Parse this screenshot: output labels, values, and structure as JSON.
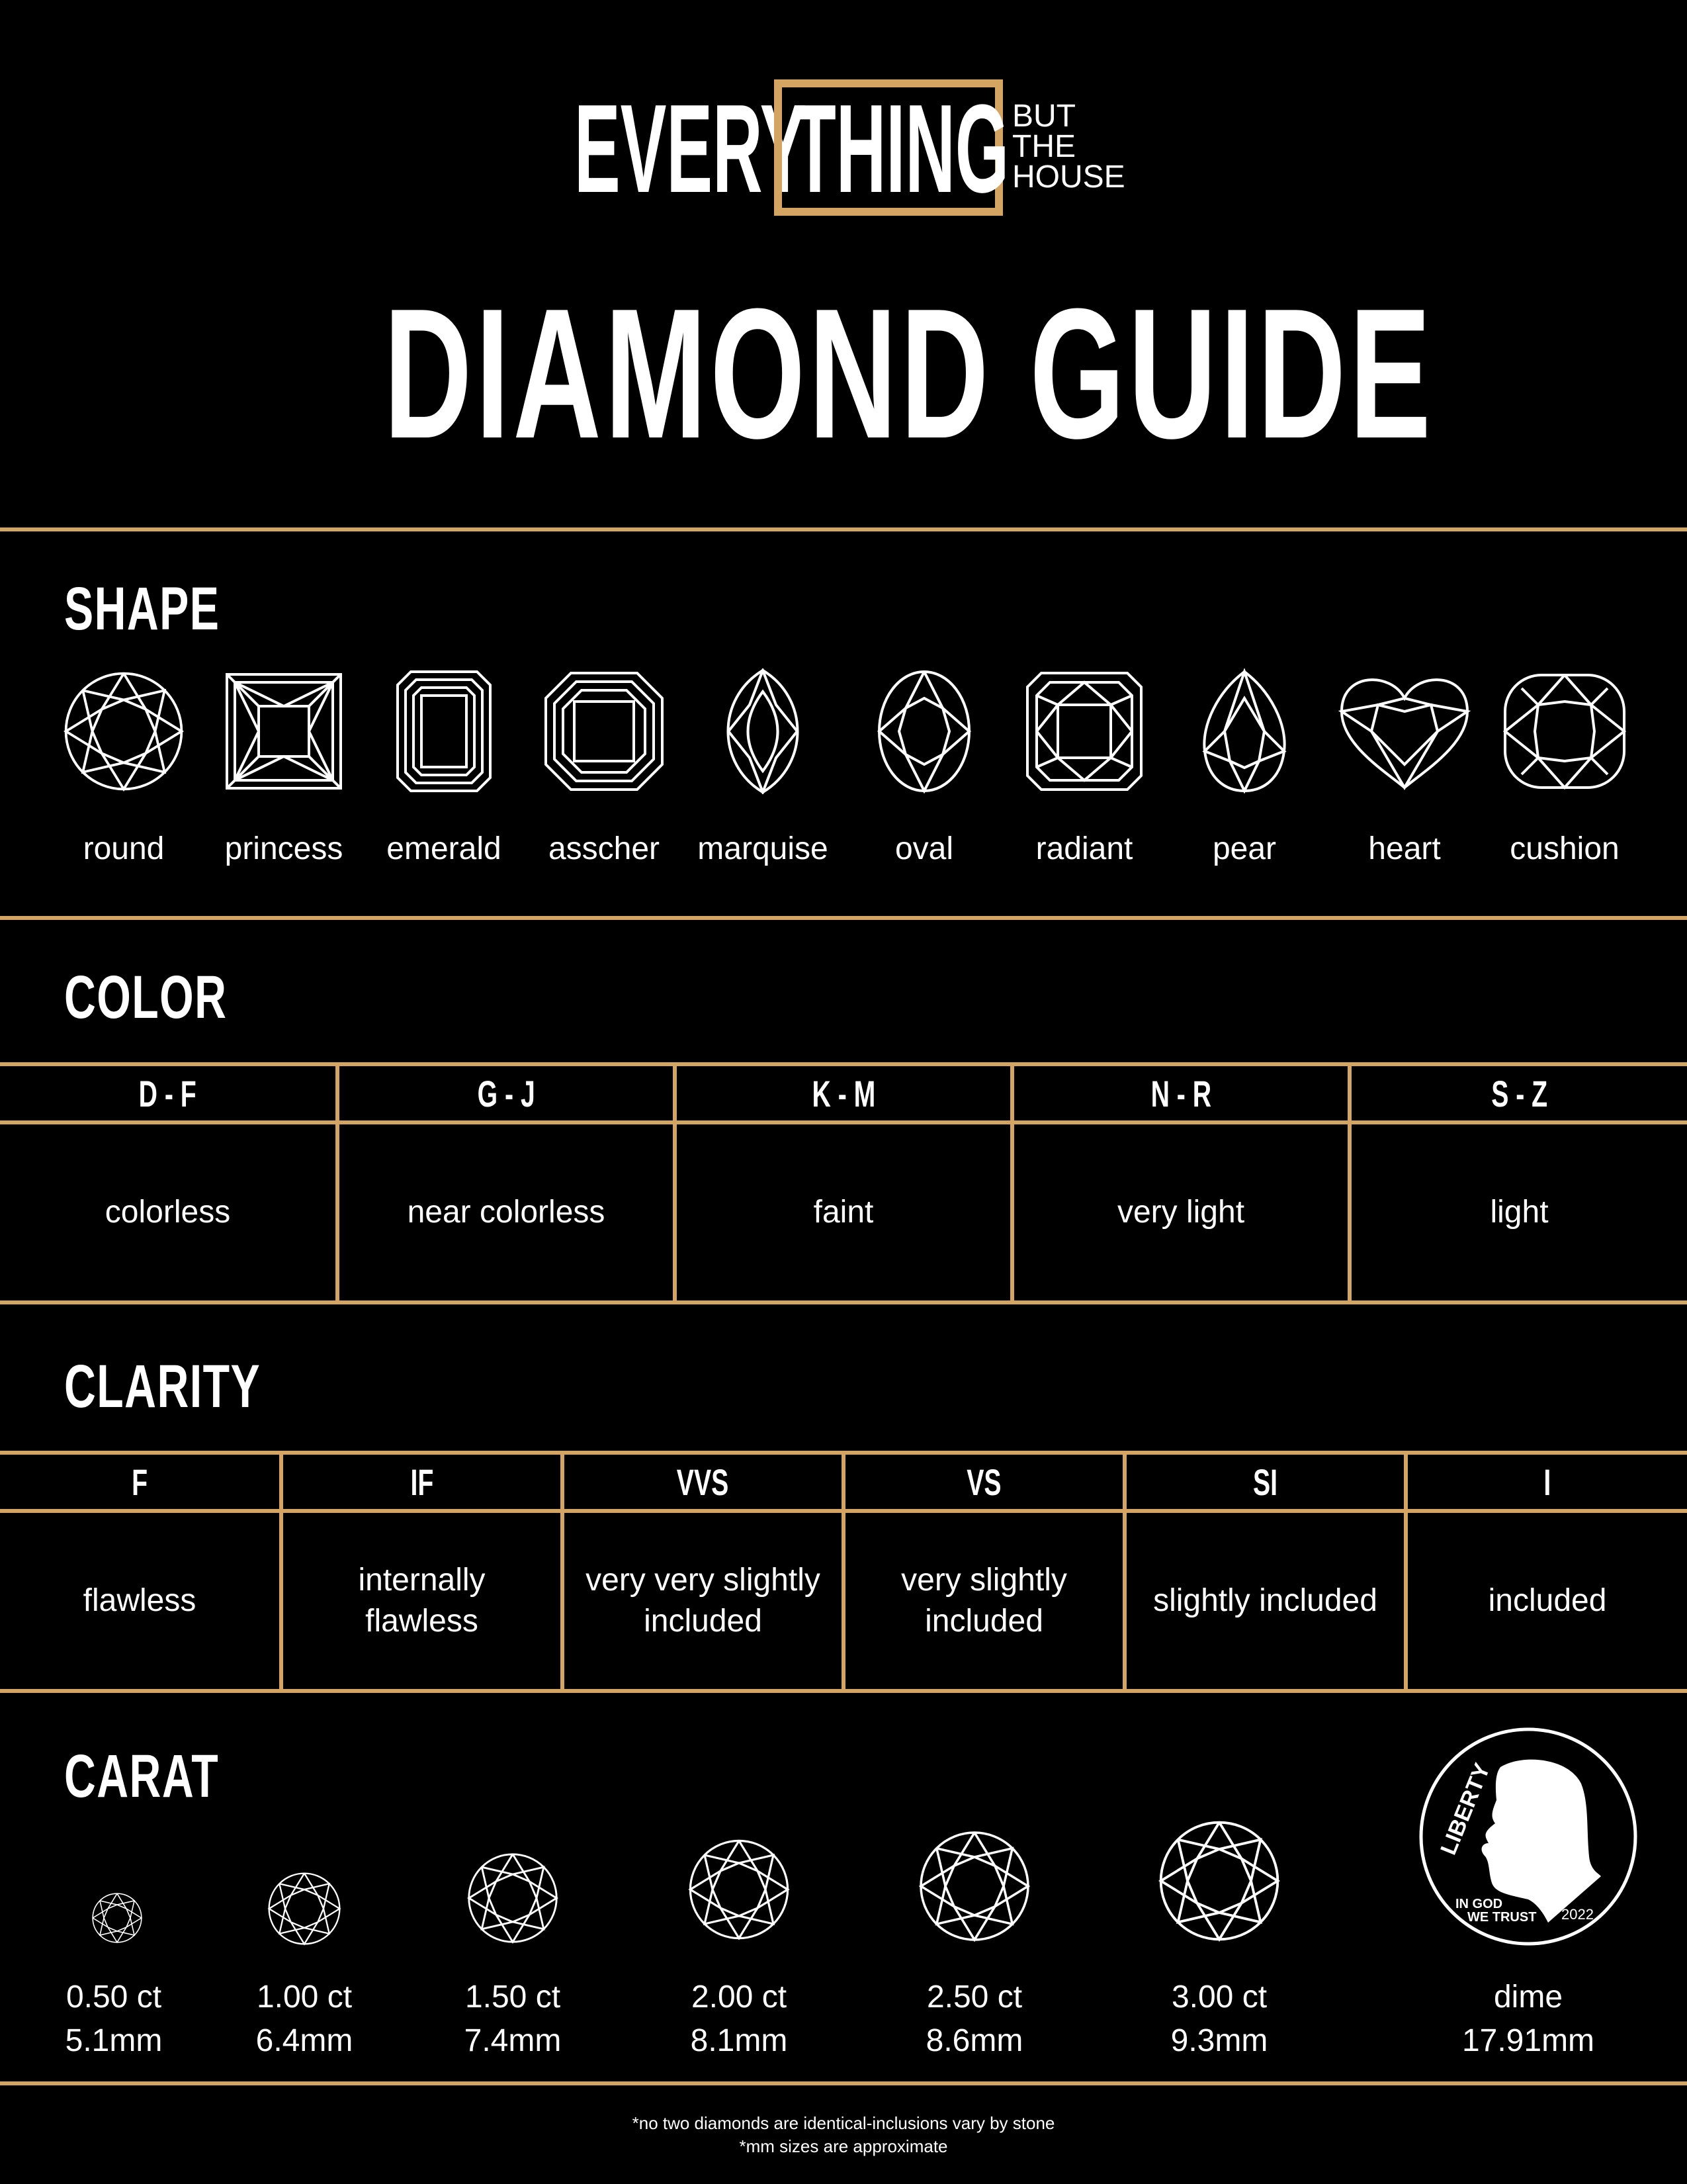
{
  "logo": {
    "every": "EVERY",
    "thing": "THING",
    "but": "BUT",
    "the": "THE",
    "house": "HOUSE"
  },
  "title": "DIAMOND GUIDE",
  "accent_color": "#D4A463",
  "shape": {
    "heading": "SHAPE",
    "items": [
      {
        "label": "round",
        "icon": "round-diamond-icon"
      },
      {
        "label": "princess",
        "icon": "princess-diamond-icon"
      },
      {
        "label": "emerald",
        "icon": "emerald-diamond-icon"
      },
      {
        "label": "asscher",
        "icon": "asscher-diamond-icon"
      },
      {
        "label": "marquise",
        "icon": "marquise-diamond-icon"
      },
      {
        "label": "oval",
        "icon": "oval-diamond-icon"
      },
      {
        "label": "radiant",
        "icon": "radiant-diamond-icon"
      },
      {
        "label": "pear",
        "icon": "pear-diamond-icon"
      },
      {
        "label": "heart",
        "icon": "heart-diamond-icon"
      },
      {
        "label": "cushion",
        "icon": "cushion-diamond-icon"
      }
    ]
  },
  "color": {
    "heading": "COLOR",
    "grades": [
      "D - F",
      "G - J",
      "K - M",
      "N - R",
      "S - Z"
    ],
    "descriptions": [
      "colorless",
      "near colorless",
      "faint",
      "very light",
      "light"
    ]
  },
  "clarity": {
    "heading": "CLARITY",
    "grades": [
      "F",
      "IF",
      "VVS",
      "VS",
      "SI",
      "I"
    ],
    "descriptions": [
      [
        "flawless"
      ],
      [
        "internally",
        "flawless"
      ],
      [
        "very very slightly",
        "included"
      ],
      [
        "very slightly",
        "included"
      ],
      [
        "slightly included"
      ],
      [
        "included"
      ]
    ]
  },
  "carat": {
    "heading": "CARAT",
    "items": [
      {
        "weight": "0.50 ct",
        "size": "5.1mm"
      },
      {
        "weight": "1.00 ct",
        "size": "6.4mm"
      },
      {
        "weight": "1.50 ct",
        "size": "7.4mm"
      },
      {
        "weight": "2.00 ct",
        "size": "8.1mm"
      },
      {
        "weight": "2.50 ct",
        "size": "8.6mm"
      },
      {
        "weight": "3.00 ct",
        "size": "9.3mm"
      }
    ],
    "dime": {
      "label": "dime",
      "size": "17.91mm",
      "liberty": "LIBERTY",
      "motto1": "IN GOD",
      "motto2": "WE TRUST",
      "year": "2022"
    }
  },
  "footer": {
    "line1": "*no two diamonds are identical-inclusions vary by stone",
    "line2": "*mm sizes are approximate"
  }
}
